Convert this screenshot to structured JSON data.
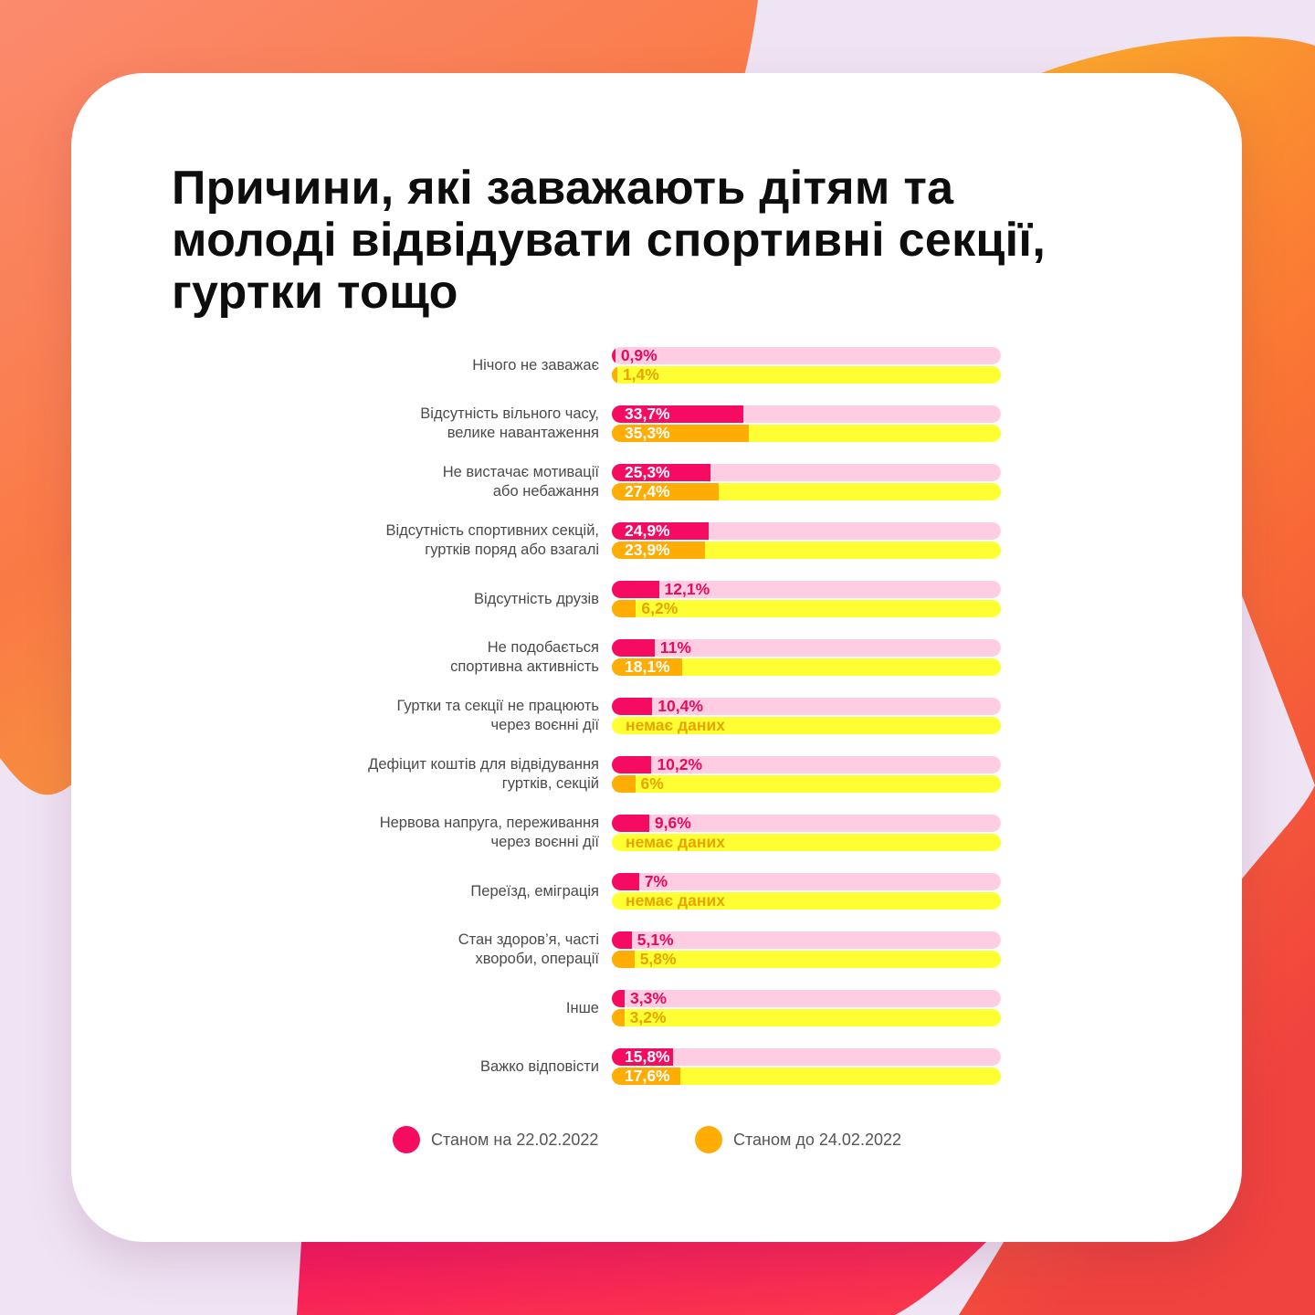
{
  "colors": {
    "accent_pink": "#f60b62",
    "pink_track": "#ffcde2",
    "accent_orange": "#ffad05",
    "yellow_track": "#ffff33",
    "title": "#0d0d0d"
  },
  "title_lines": [
    "Причини, які заважають дітям та",
    "молоді відвідувати спортивні секції,",
    "гуртки тощо"
  ],
  "legend": [
    {
      "label": "Станом на 22.02.2022",
      "color": "#f60b62"
    },
    {
      "label": "Станом до 24.02.2022",
      "color": "#ffad05"
    }
  ],
  "chart_data": {
    "type": "bar",
    "orientation": "horizontal",
    "title": "Причини, які заважають дітям та молоді відвідувати спортивні секції, гуртки тощо",
    "unit": "%",
    "xlim": [
      0,
      100
    ],
    "grid": false,
    "legend_position": "bottom",
    "categories": [
      [
        "Нічого не заважає"
      ],
      [
        "Відсутність вільного часу,",
        "велике навантаження"
      ],
      [
        "Не вистачає мотивації",
        "або небажання"
      ],
      [
        "Відсутність спортивних секцій,",
        "гуртків поряд або взагалі"
      ],
      [
        "Відсутність друзів"
      ],
      [
        "Не подобається",
        "спортивна активність"
      ],
      [
        "Гуртки та секції не працюють",
        "через воєнні дії"
      ],
      [
        "Дефіцит коштів для відвідування",
        "гуртків, секцій"
      ],
      [
        "Нервова напруга, переживання",
        "через воєнні дії"
      ],
      [
        "Переїзд, еміграція"
      ],
      [
        "Стан здоров’я, часті",
        "хвороби, операції"
      ],
      [
        "Інше"
      ],
      [
        "Важко відповісти"
      ]
    ],
    "series": [
      {
        "name": "Станом на 22.02.2022",
        "values": [
          0.9,
          33.7,
          25.3,
          24.9,
          12.1,
          11,
          10.4,
          10.2,
          9.6,
          7,
          5.1,
          3.3,
          15.8
        ],
        "labels": [
          "0,9%",
          "33,7%",
          "25,3%",
          "24,9%",
          "12,1%",
          "11%",
          "10,4%",
          "10,2%",
          "9,6%",
          "7%",
          "5,1%",
          "3,3%",
          "15,8%"
        ]
      },
      {
        "name": "Станом до 24.02.2022",
        "values": [
          1.4,
          35.3,
          27.4,
          23.9,
          6.2,
          18.1,
          null,
          6,
          null,
          null,
          5.8,
          3.2,
          17.6
        ],
        "labels": [
          "1,4%",
          "35,3%",
          "27,4%",
          "23,9%",
          "6,2%",
          "18,1%",
          "немає даних",
          "6%",
          "немає даних",
          "немає даних",
          "5,8%",
          "3,2%",
          "17,6%"
        ]
      }
    ]
  }
}
